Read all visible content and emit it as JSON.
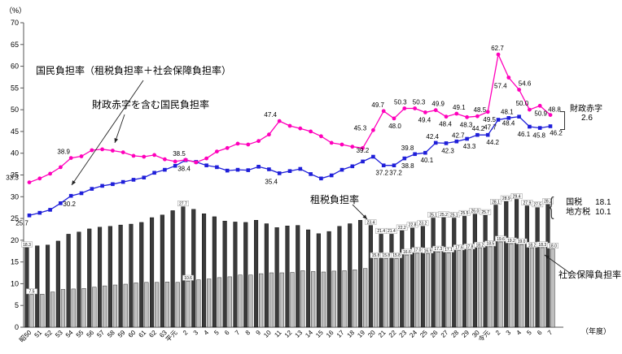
{
  "page": {
    "y_unit": "（%）",
    "x_unit": "（年度）"
  },
  "annotations": {
    "national_burden_line_label": "国民負担率（租税負担率＋社会保障負担率）",
    "deficit_included_line_label": "財政赤字を含む国民負担率",
    "tax_burden_label": "租税負担率",
    "social_security_label": "社会保障負担率",
    "fiscal_deficit_label": "財政赤字",
    "fiscal_deficit_value": "2.6",
    "national_tax_label": "国税",
    "national_tax_value": "18.1",
    "local_tax_label": "地方税",
    "local_tax_value": "10.1",
    "brace_glyph": "{"
  },
  "chart_data": {
    "type": "combo bar+line",
    "title": "",
    "xlabel": "（年度）",
    "ylabel": "（%）",
    "ylim": [
      0,
      70
    ],
    "ytick_step": 5,
    "grid": false,
    "x_labels": [
      "昭50",
      "51",
      "52",
      "53",
      "54",
      "55",
      "56",
      "57",
      "58",
      "59",
      "60",
      "61",
      "62",
      "63",
      "平元",
      "2",
      "3",
      "4",
      "5",
      "6",
      "7",
      "8",
      "9",
      "10",
      "11",
      "12",
      "13",
      "14",
      "15",
      "16",
      "17",
      "18",
      "19",
      "20",
      "21",
      "22",
      "23",
      "24",
      "25",
      "26",
      "27",
      "28",
      "29",
      "30",
      "令元",
      "2",
      "3",
      "4",
      "5",
      "6",
      "7"
    ],
    "series": [
      {
        "name": "財政赤字を含む国民負担率",
        "type": "line",
        "marker": "circle",
        "color": "#ff00bb",
        "values": [
          33.3,
          34.2,
          35.3,
          36.8,
          38.9,
          39.3,
          40.7,
          40.9,
          40.6,
          40.2,
          39.4,
          39.2,
          39.6,
          38.6,
          38.1,
          38.5,
          37.9,
          38.8,
          40.4,
          41.2,
          42.2,
          42.0,
          42.8,
          44.3,
          47.4,
          46.3,
          45.7,
          45.0,
          43.9,
          42.4,
          42.0,
          41.5,
          41.2,
          45.3,
          49.7,
          48.0,
          50.3,
          50.3,
          49.4,
          49.9,
          48.4,
          49.1,
          48.3,
          48.5,
          49.5,
          62.7,
          57.4,
          54.6,
          50.0,
          50.9,
          48.8
        ]
      },
      {
        "name": "国民負担率（租税負担率＋社会保障負担率）",
        "type": "line",
        "marker": "square",
        "color": "#1f1fd9",
        "values": [
          25.7,
          26.3,
          27.0,
          28.5,
          30.2,
          30.8,
          31.8,
          32.5,
          32.9,
          33.4,
          33.9,
          34.4,
          35.5,
          36.2,
          37.1,
          38.4,
          38.0,
          37.2,
          36.8,
          36.0,
          36.2,
          36.1,
          36.9,
          36.3,
          35.4,
          35.9,
          36.4,
          35.2,
          34.2,
          34.9,
          36.2,
          37.0,
          38.1,
          39.2,
          37.2,
          37.2,
          38.8,
          39.8,
          40.1,
          42.4,
          42.3,
          42.7,
          43.3,
          44.2,
          44.2,
          47.7,
          48.1,
          48.4,
          46.1,
          45.8,
          46.2
        ]
      },
      {
        "name": "租税負担率",
        "type": "bar",
        "color": "#3a3a3a",
        "values": [
          18.3,
          18.7,
          18.9,
          19.8,
          21.4,
          21.9,
          22.6,
          23.0,
          23.2,
          23.5,
          23.7,
          24.1,
          25.2,
          25.8,
          26.8,
          27.7,
          27.1,
          26.1,
          25.4,
          24.4,
          24.2,
          24.1,
          24.6,
          23.8,
          22.9,
          23.3,
          23.4,
          22.4,
          21.5,
          22.0,
          23.2,
          23.8,
          24.6,
          23.4,
          21.4,
          21.4,
          22.2,
          22.8,
          23.2,
          25.1,
          25.2,
          25.1,
          25.5,
          26.0,
          25.7,
          28.1,
          28.9,
          29.4,
          27.9,
          27.5,
          28.2
        ]
      },
      {
        "name": "社会保障負担率",
        "type": "bar",
        "color": "#bfbfbf",
        "values": [
          7.5,
          7.6,
          8.1,
          8.7,
          8.8,
          8.9,
          9.2,
          9.5,
          9.7,
          9.9,
          10.2,
          10.3,
          10.3,
          10.4,
          10.3,
          10.6,
          10.9,
          11.1,
          11.4,
          11.6,
          12.0,
          12.0,
          12.3,
          12.5,
          12.5,
          12.6,
          13.0,
          12.8,
          12.7,
          12.9,
          13.0,
          13.2,
          13.5,
          15.8,
          15.8,
          15.8,
          16.6,
          17.0,
          16.9,
          17.3,
          17.1,
          17.6,
          17.8,
          18.2,
          18.5,
          19.6,
          19.2,
          19.0,
          18.2,
          18.3,
          18.0
        ]
      }
    ],
    "line_labeled_indices": [
      0,
      4,
      15,
      24,
      33,
      34,
      35,
      36,
      37,
      38,
      39,
      40,
      41,
      42,
      43,
      44,
      45,
      46,
      47,
      48,
      49,
      50
    ],
    "bar_labeled_indices": [
      0,
      15,
      33,
      34,
      35,
      36,
      37,
      38,
      39,
      40,
      41,
      42,
      43,
      44,
      45,
      46,
      47,
      48,
      49,
      50
    ]
  }
}
